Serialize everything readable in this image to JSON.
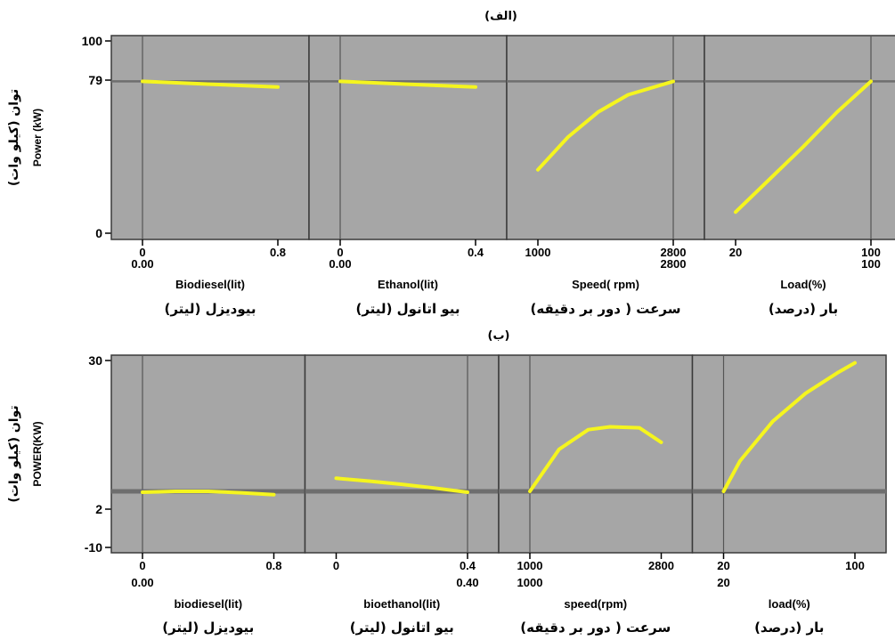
{
  "chart_data": [
    {
      "type": "line",
      "title": "(الف)",
      "ylabel": "Power (kW)",
      "ylabel_fa": "توان (کیلو وات)",
      "ylim": [
        0,
        100
      ],
      "y_ticks": [
        "0",
        "79",
        "100"
      ],
      "reference_value": 79,
      "background_color": "#a6a6a6",
      "line_color": "#f5f51e",
      "panels": [
        {
          "xlabel": "Biodiesel(lit)",
          "xlabel_fa": "بیودیزل (لیتر)",
          "xlim": [
            0,
            0.8
          ],
          "x_ticks": [
            "0",
            "0.8"
          ],
          "x_ticks_alt": [
            "0.00",
            ""
          ],
          "marker": 0,
          "series": [
            {
              "x": [
                0,
                0.4,
                0.8
              ],
              "y": [
                79,
                77.5,
                76
              ]
            }
          ]
        },
        {
          "xlabel": "Ethanol(lit)",
          "xlabel_fa": "بیو اتانول (لیتر)",
          "xlim": [
            0,
            0.4
          ],
          "x_ticks": [
            "0",
            "0.4"
          ],
          "x_ticks_alt": [
            "0.00",
            ""
          ],
          "marker": 0,
          "series": [
            {
              "x": [
                0,
                0.2,
                0.4
              ],
              "y": [
                79,
                77.5,
                76
              ]
            }
          ]
        },
        {
          "xlabel": "Speed( rpm)",
          "xlabel_fa": "سرعت ( دور بر دقیقه)",
          "xlim": [
            1000,
            2800
          ],
          "x_ticks": [
            "1000",
            "2800"
          ],
          "x_ticks_alt": [
            "",
            "2800"
          ],
          "marker": 2800,
          "series": [
            {
              "x": [
                1000,
                1400,
                1800,
                2200,
                2800
              ],
              "y": [
                33,
                50,
                63,
                72,
                79
              ]
            }
          ]
        },
        {
          "xlabel": "Load(%)",
          "xlabel_fa": "بار (درصد)",
          "xlim": [
            20,
            100
          ],
          "x_ticks": [
            "20",
            "100"
          ],
          "x_ticks_alt": [
            "",
            "100"
          ],
          "marker": 100,
          "series": [
            {
              "x": [
                20,
                40,
                60,
                80,
                100
              ],
              "y": [
                11,
                28,
                45,
                63,
                79
              ]
            }
          ]
        }
      ]
    },
    {
      "type": "line",
      "title": "(ب)",
      "ylabel": "POWER(KW)",
      "ylabel_fa": "توان (کیلو وات)",
      "ylim": [
        -10,
        30
      ],
      "y_ticks": [
        "-10",
        "2",
        "30"
      ],
      "reference_value": 2,
      "background_color": "#a6a6a6",
      "line_color": "#f5f51e",
      "panels": [
        {
          "xlabel": "biodiesel(lit)",
          "xlabel_fa": "بیودیزل (لیتر)",
          "xlim": [
            0,
            0.8
          ],
          "x_ticks": [
            "0",
            "0.8"
          ],
          "x_ticks_alt": [
            "0.00",
            ""
          ],
          "marker": 0,
          "series": [
            {
              "x": [
                0,
                0.2,
                0.4,
                0.6,
                0.8
              ],
              "y": [
                1.8,
                2.0,
                2.0,
                1.7,
                1.3
              ]
            }
          ]
        },
        {
          "xlabel": "bioethanol(lit)",
          "xlabel_fa": "بیو اتانول (لیتر)",
          "xlim": [
            0,
            0.4
          ],
          "x_ticks": [
            "0",
            "0.4"
          ],
          "x_ticks_alt": [
            "",
            "0.40"
          ],
          "marker": 0.4,
          "series": [
            {
              "x": [
                0,
                0.1,
                0.2,
                0.3,
                0.4
              ],
              "y": [
                4.8,
                4.2,
                3.5,
                2.7,
                1.8
              ]
            }
          ]
        },
        {
          "xlabel": "speed(rpm)",
          "xlabel_fa": "سرعت ( دور بر دقیقه)",
          "xlim": [
            1000,
            2800
          ],
          "x_ticks": [
            "1000",
            "2800"
          ],
          "x_ticks_alt": [
            "1000",
            ""
          ],
          "marker": 1000,
          "series": [
            {
              "x": [
                1000,
                1400,
                1800,
                2100,
                2500,
                2800
              ],
              "y": [
                2,
                11,
                15.2,
                15.8,
                15.6,
                12.5
              ]
            }
          ]
        },
        {
          "xlabel": "load(%)",
          "xlabel_fa": "بار (درصد)",
          "xlim": [
            20,
            100
          ],
          "x_ticks": [
            "20",
            "100"
          ],
          "x_ticks_alt": [
            "20",
            ""
          ],
          "marker": 20,
          "series": [
            {
              "x": [
                20,
                30,
                50,
                70,
                90,
                100
              ],
              "y": [
                2,
                8.5,
                17,
                23,
                27.5,
                29.5
              ]
            }
          ]
        }
      ]
    }
  ]
}
